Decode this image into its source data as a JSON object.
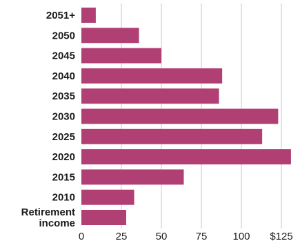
{
  "chart_data": {
    "type": "bar",
    "orientation": "horizontal",
    "categories": [
      "2051+",
      "2050",
      "2045",
      "2040",
      "2035",
      "2030",
      "2025",
      "2020",
      "2015",
      "2010",
      "Retirement income"
    ],
    "category_lines": [
      [
        "2051+"
      ],
      [
        "2050"
      ],
      [
        "2045"
      ],
      [
        "2040"
      ],
      [
        "2035"
      ],
      [
        "2030"
      ],
      [
        "2025"
      ],
      [
        "2020"
      ],
      [
        "2015"
      ],
      [
        "2010"
      ],
      [
        "Retirement",
        "income"
      ]
    ],
    "values": [
      9,
      36,
      50,
      88,
      86,
      123,
      113,
      131,
      64,
      33,
      28
    ],
    "xlim": [
      0,
      125
    ],
    "xticks": [
      0,
      25,
      50,
      75,
      100,
      125
    ],
    "xtick_labels": [
      "0",
      "25",
      "50",
      "75",
      "100",
      "$125"
    ],
    "grid": true,
    "colors": {
      "bar": "#b03f73",
      "grid": "#c9c9c9",
      "text": "#1a1a1a"
    }
  }
}
